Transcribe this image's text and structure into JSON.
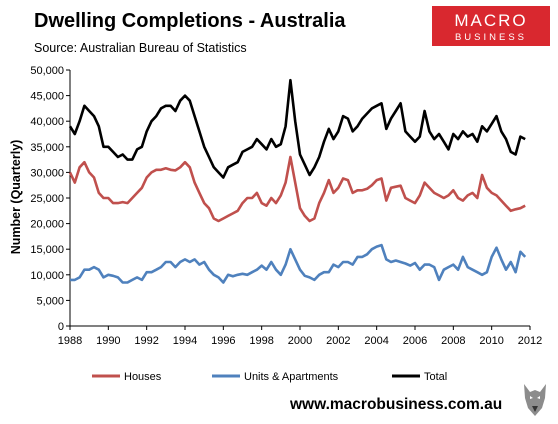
{
  "header": {
    "title": "Dwelling Completions - Australia",
    "source": "Source: Australian Bureau of Statistics"
  },
  "logo": {
    "line1": "MACRO",
    "line2": "BUSINESS"
  },
  "footer": {
    "website": "www.macrobusiness.com.au"
  },
  "colors": {
    "houses": "#c0504d",
    "units": "#4f81bd",
    "total": "#000000",
    "logo_bg": "#d9282f"
  },
  "chart_data": {
    "type": "line",
    "title": "Dwelling Completions - Australia",
    "xlabel": "",
    "ylabel": "Number (Quarterly)",
    "ylim": [
      0,
      50000
    ],
    "xlim": [
      1988,
      2012
    ],
    "grid": false,
    "legend_position": "bottom",
    "y_ticks": [
      "0",
      "5,000",
      "10,000",
      "15,000",
      "20,000",
      "25,000",
      "30,000",
      "35,000",
      "40,000",
      "45,000",
      "50,000"
    ],
    "x_ticks": [
      "1988",
      "1990",
      "1992",
      "1994",
      "1996",
      "1998",
      "2000",
      "2002",
      "2004",
      "2006",
      "2008",
      "2010",
      "2012"
    ],
    "x": [
      1988.0,
      1988.25,
      1988.5,
      1988.75,
      1989.0,
      1989.25,
      1989.5,
      1989.75,
      1990.0,
      1990.25,
      1990.5,
      1990.75,
      1991.0,
      1991.25,
      1991.5,
      1991.75,
      1992.0,
      1992.25,
      1992.5,
      1992.75,
      1993.0,
      1993.25,
      1993.5,
      1993.75,
      1994.0,
      1994.25,
      1994.5,
      1994.75,
      1995.0,
      1995.25,
      1995.5,
      1995.75,
      1996.0,
      1996.25,
      1996.5,
      1996.75,
      1997.0,
      1997.25,
      1997.5,
      1997.75,
      1998.0,
      1998.25,
      1998.5,
      1998.75,
      1999.0,
      1999.25,
      1999.5,
      1999.75,
      2000.0,
      2000.25,
      2000.5,
      2000.75,
      2001.0,
      2001.25,
      2001.5,
      2001.75,
      2002.0,
      2002.25,
      2002.5,
      2002.75,
      2003.0,
      2003.25,
      2003.5,
      2003.75,
      2004.0,
      2004.25,
      2004.5,
      2004.75,
      2005.0,
      2005.25,
      2005.5,
      2005.75,
      2006.0,
      2006.25,
      2006.5,
      2006.75,
      2007.0,
      2007.25,
      2007.5,
      2007.75,
      2008.0,
      2008.25,
      2008.5,
      2008.75,
      2009.0,
      2009.25,
      2009.5,
      2009.75,
      2010.0,
      2010.25,
      2010.5,
      2010.75,
      2011.0,
      2011.25,
      2011.5,
      2011.75
    ],
    "series": [
      {
        "name": "Houses",
        "color": "#c0504d",
        "values": [
          30000,
          28000,
          31000,
          32000,
          30000,
          29000,
          26000,
          25000,
          25000,
          24000,
          24000,
          24200,
          24000,
          25000,
          26000,
          27000,
          29000,
          30000,
          30500,
          30500,
          30800,
          30500,
          30400,
          31000,
          32000,
          31000,
          28000,
          26000,
          24000,
          23000,
          21000,
          20500,
          21000,
          21500,
          22000,
          22500,
          24000,
          25000,
          25000,
          26000,
          24000,
          23500,
          25000,
          24000,
          25500,
          28000,
          33000,
          28000,
          23000,
          21500,
          20500,
          21000,
          24000,
          26000,
          28500,
          26000,
          27000,
          28800,
          28500,
          26000,
          26500,
          26500,
          26800,
          27500,
          28500,
          28800,
          24500,
          27000,
          27200,
          27400,
          25000,
          24500,
          24000,
          25500,
          28000,
          27000,
          26000,
          25500,
          25000,
          25500,
          26500,
          25000,
          24500,
          25500,
          26000,
          25000,
          29500,
          27000,
          26000,
          25500,
          24500,
          23500,
          22500,
          22800,
          23000,
          23500
        ]
      },
      {
        "name": "Units & Apartments",
        "color": "#4f81bd",
        "values": [
          9000,
          9000,
          9500,
          11000,
          11000,
          11500,
          11000,
          9500,
          10000,
          9800,
          9500,
          8500,
          8500,
          9000,
          9500,
          9000,
          10500,
          10500,
          11000,
          11500,
          12500,
          12500,
          11500,
          12500,
          13000,
          12500,
          13000,
          12000,
          12500,
          11000,
          10000,
          9500,
          8500,
          10000,
          9700,
          10000,
          10200,
          10000,
          10500,
          11000,
          11800,
          11000,
          12500,
          11000,
          10000,
          12000,
          15000,
          13000,
          11000,
          9800,
          9500,
          9000,
          10000,
          10500,
          10500,
          12000,
          11500,
          12500,
          12500,
          12000,
          13500,
          13500,
          14000,
          15000,
          15500,
          15800,
          13000,
          12500,
          12800,
          12500,
          12200,
          11800,
          12300,
          11000,
          12000,
          12000,
          11500,
          9000,
          11000,
          11500,
          12000,
          11000,
          13500,
          11500,
          11000,
          10500,
          10000,
          10500,
          13500,
          15300,
          13000,
          11000,
          12500,
          10500,
          14500,
          13500
        ]
      },
      {
        "name": "Total",
        "color": "#000000",
        "values": [
          39000,
          37500,
          40000,
          43000,
          42000,
          41000,
          39000,
          35000,
          35000,
          34000,
          33000,
          33500,
          32500,
          32500,
          34500,
          35000,
          38000,
          40000,
          41000,
          42500,
          43000,
          43000,
          42000,
          44000,
          45000,
          44000,
          41000,
          38000,
          35000,
          33000,
          31000,
          30000,
          29000,
          31000,
          31500,
          32000,
          34000,
          34500,
          35000,
          36500,
          35500,
          34500,
          36500,
          35000,
          35500,
          39000,
          48000,
          40000,
          33500,
          31500,
          29500,
          31000,
          33000,
          36000,
          38500,
          36500,
          38000,
          41000,
          40500,
          38000,
          39000,
          40500,
          41500,
          42500,
          43000,
          43500,
          38500,
          40500,
          42000,
          43500,
          38000,
          37000,
          36000,
          37000,
          42000,
          38000,
          36500,
          37500,
          36000,
          34500,
          37500,
          36500,
          38000,
          37000,
          37500,
          36000,
          39000,
          38000,
          39500,
          41000,
          38000,
          36500,
          34000,
          33500,
          37000,
          36500
        ]
      }
    ]
  }
}
